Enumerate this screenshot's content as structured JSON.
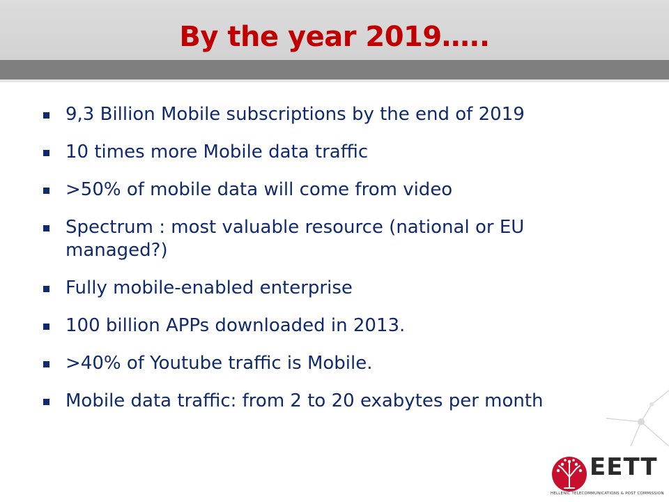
{
  "slide": {
    "title": "By the year 2019…..",
    "bullets": [
      "9,3 Billion Mobile subscriptions by the end of 2019",
      "10 times more Mobile data traffic",
      ">50% of mobile data will come from video",
      "Spectrum : most valuable resource (national or EU managed?)",
      "Fully mobile-enabled enterprise",
      "100 billion APPs downloaded in 2013.",
      ">40% of Youtube traffic is Mobile.",
      "Mobile data traffic: from 2 to 20 exabytes per month"
    ]
  },
  "logo": {
    "name": "EETT",
    "subtitle": "HELLENIC TELECOMMUNICATIONS & POST COMMISSION"
  },
  "colors": {
    "title": "#c00000",
    "text": "#0f2a6e",
    "header_bg": "#d6d6d6",
    "band": "#7f7f7f",
    "logo_red": "#c8102e"
  }
}
